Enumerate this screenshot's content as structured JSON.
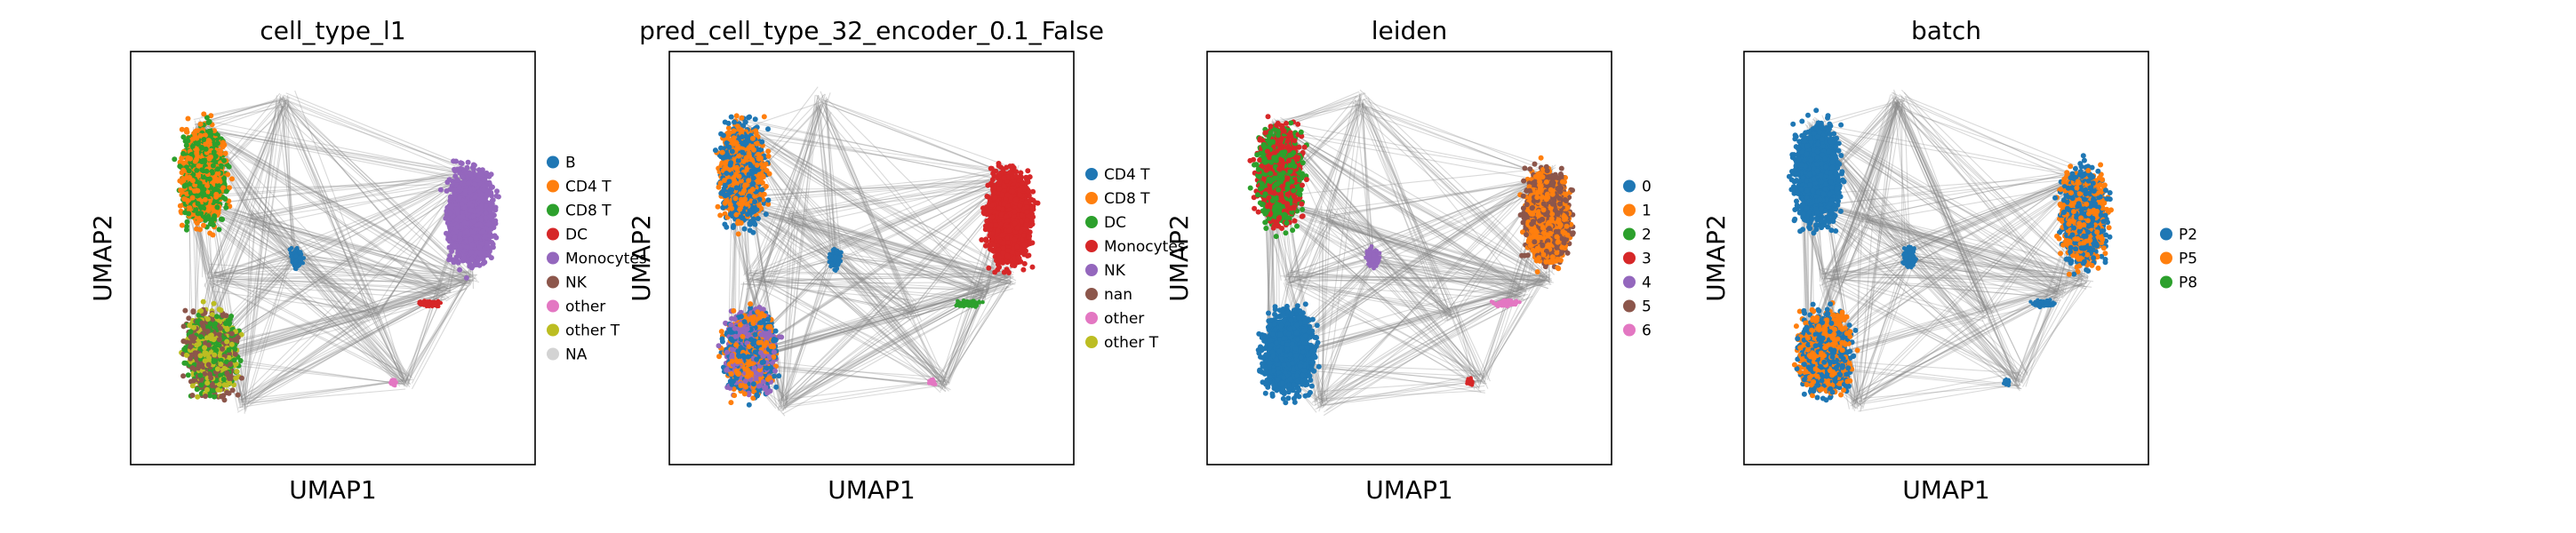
{
  "chart_data": [
    {
      "type": "scatter",
      "title": "cell_type_l1",
      "xlabel": "UMAP1",
      "ylabel": "UMAP2",
      "legend_position": "right",
      "legend": [
        {
          "label": "B",
          "color": "#1f77b4"
        },
        {
          "label": "CD4 T",
          "color": "#ff7f0e"
        },
        {
          "label": "CD8 T",
          "color": "#2ca02c"
        },
        {
          "label": "DC",
          "color": "#d62728"
        },
        {
          "label": "Monocytes",
          "color": "#9467bd"
        },
        {
          "label": "NK",
          "color": "#8c564b"
        },
        {
          "label": "other",
          "color": "#e377c2"
        },
        {
          "label": "other T",
          "color": "#bcbd22"
        },
        {
          "label": "NA",
          "color": "#d3d3d3"
        }
      ],
      "regions": [
        {
          "name": "top-left",
          "colors": [
            "#ff7f0e",
            "#2ca02c"
          ]
        },
        {
          "name": "bottom-left",
          "colors": [
            "#2ca02c",
            "#bcbd22",
            "#8c564b"
          ]
        },
        {
          "name": "right",
          "colors": [
            "#9467bd"
          ]
        },
        {
          "name": "center",
          "colors": [
            "#1f77b4"
          ]
        },
        {
          "name": "bridge",
          "colors": [
            "#d62728"
          ]
        },
        {
          "name": "small",
          "colors": [
            "#e377c2"
          ]
        }
      ]
    },
    {
      "type": "scatter",
      "title": "pred_cell_type_32_encoder_0.1_False",
      "xlabel": "UMAP1",
      "ylabel": "UMAP2",
      "legend_position": "right",
      "legend": [
        {
          "label": "CD4 T",
          "color": "#1f77b4"
        },
        {
          "label": "CD8 T",
          "color": "#ff7f0e"
        },
        {
          "label": "DC",
          "color": "#2ca02c"
        },
        {
          "label": "Monocytes",
          "color": "#d62728"
        },
        {
          "label": "NK",
          "color": "#9467bd"
        },
        {
          "label": "nan",
          "color": "#8c564b"
        },
        {
          "label": "other",
          "color": "#e377c2"
        },
        {
          "label": "other T",
          "color": "#bcbd22"
        }
      ],
      "regions": [
        {
          "name": "top-left",
          "colors": [
            "#1f77b4",
            "#ff7f0e"
          ]
        },
        {
          "name": "bottom-left",
          "colors": [
            "#1f77b4",
            "#ff7f0e",
            "#9467bd"
          ]
        },
        {
          "name": "right",
          "colors": [
            "#d62728"
          ]
        },
        {
          "name": "center",
          "colors": [
            "#1f77b4"
          ]
        },
        {
          "name": "bridge",
          "colors": [
            "#2ca02c"
          ]
        },
        {
          "name": "small",
          "colors": [
            "#e377c2"
          ]
        }
      ]
    },
    {
      "type": "scatter",
      "title": "leiden",
      "xlabel": "UMAP1",
      "ylabel": "UMAP2",
      "legend_position": "right",
      "legend": [
        {
          "label": "0",
          "color": "#1f77b4"
        },
        {
          "label": "1",
          "color": "#ff7f0e"
        },
        {
          "label": "2",
          "color": "#2ca02c"
        },
        {
          "label": "3",
          "color": "#d62728"
        },
        {
          "label": "4",
          "color": "#9467bd"
        },
        {
          "label": "5",
          "color": "#8c564b"
        },
        {
          "label": "6",
          "color": "#e377c2"
        }
      ],
      "regions": [
        {
          "name": "top-left",
          "colors": [
            "#2ca02c",
            "#d62728"
          ]
        },
        {
          "name": "bottom-left",
          "colors": [
            "#1f77b4"
          ]
        },
        {
          "name": "right",
          "colors": [
            "#ff7f0e",
            "#8c564b"
          ]
        },
        {
          "name": "center",
          "colors": [
            "#9467bd"
          ]
        },
        {
          "name": "bridge",
          "colors": [
            "#e377c2"
          ]
        },
        {
          "name": "small",
          "colors": [
            "#d62728"
          ]
        }
      ]
    },
    {
      "type": "scatter",
      "title": "batch",
      "xlabel": "UMAP1",
      "ylabel": "UMAP2",
      "legend_position": "right",
      "legend": [
        {
          "label": "P2",
          "color": "#1f77b4"
        },
        {
          "label": "P5",
          "color": "#ff7f0e"
        },
        {
          "label": "P8",
          "color": "#2ca02c"
        }
      ],
      "regions": [
        {
          "name": "top-left",
          "colors": [
            "#1f77b4"
          ]
        },
        {
          "name": "bottom-left",
          "colors": [
            "#1f77b4",
            "#ff7f0e"
          ]
        },
        {
          "name": "right",
          "colors": [
            "#1f77b4",
            "#ff7f0e"
          ]
        },
        {
          "name": "center",
          "colors": [
            "#1f77b4"
          ]
        },
        {
          "name": "bridge",
          "colors": [
            "#1f77b4"
          ]
        },
        {
          "name": "small",
          "colors": [
            "#1f77b4"
          ]
        }
      ]
    }
  ]
}
